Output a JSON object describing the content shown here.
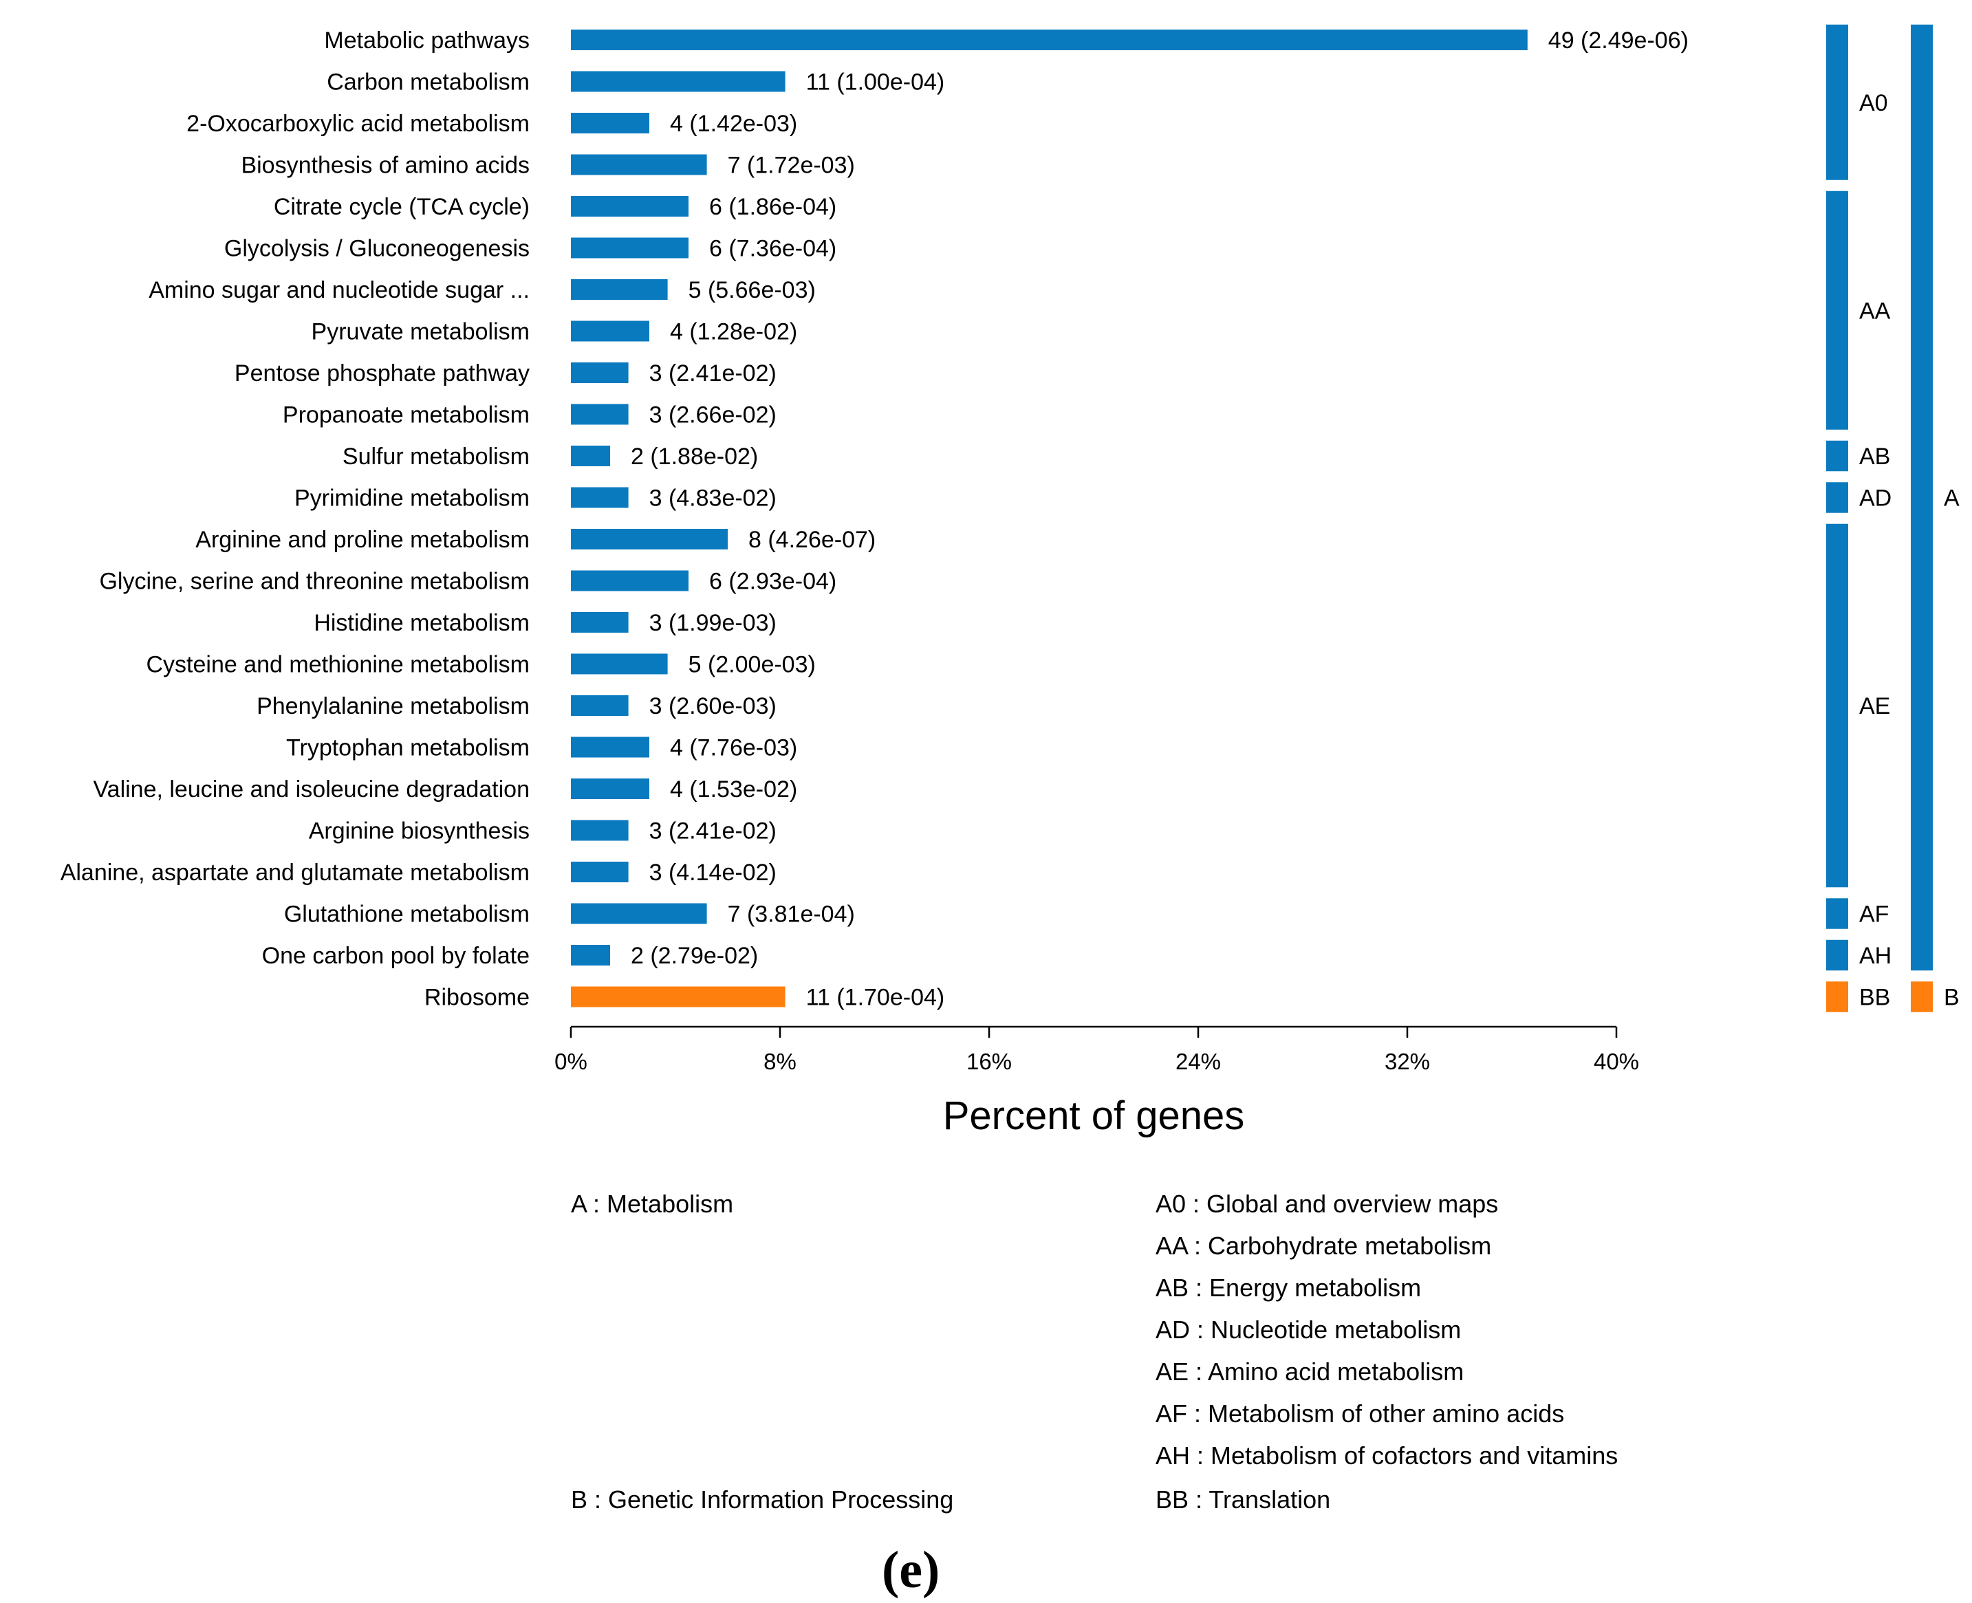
{
  "chart_data": {
    "type": "bar",
    "orientation": "horizontal",
    "xlabel": "Percent of genes",
    "xlim": [
      0,
      40
    ],
    "xticks": [
      "0%",
      "8%",
      "16%",
      "24%",
      "32%",
      "40%"
    ],
    "colors": {
      "A": "#0a7abf",
      "B": "#ff7f0e"
    },
    "bars": [
      {
        "category": "Metabolic pathways",
        "count": 49,
        "pvalue": "2.49e-06",
        "label": "49 (2.49e-06)",
        "percent": 36.6,
        "class": "A"
      },
      {
        "category": "Carbon metabolism",
        "count": 11,
        "pvalue": "1.00e-04",
        "label": "11 (1.00e-04)",
        "percent": 8.2,
        "class": "A"
      },
      {
        "category": "2-Oxocarboxylic acid metabolism",
        "count": 4,
        "pvalue": "1.42e-03",
        "label": "4 (1.42e-03)",
        "percent": 3.0,
        "class": "A"
      },
      {
        "category": "Biosynthesis of amino acids",
        "count": 7,
        "pvalue": "1.72e-03",
        "label": "7 (1.72e-03)",
        "percent": 5.2,
        "class": "A"
      },
      {
        "category": "Citrate cycle (TCA cycle)",
        "count": 6,
        "pvalue": "1.86e-04",
        "label": "6 (1.86e-04)",
        "percent": 4.5,
        "class": "A"
      },
      {
        "category": "Glycolysis / Gluconeogenesis",
        "count": 6,
        "pvalue": "7.36e-04",
        "label": "6 (7.36e-04)",
        "percent": 4.5,
        "class": "A"
      },
      {
        "category": "Amino sugar and nucleotide sugar ...",
        "count": 5,
        "pvalue": "5.66e-03",
        "label": "5 (5.66e-03)",
        "percent": 3.7,
        "class": "A"
      },
      {
        "category": "Pyruvate metabolism",
        "count": 4,
        "pvalue": "1.28e-02",
        "label": "4 (1.28e-02)",
        "percent": 3.0,
        "class": "A"
      },
      {
        "category": "Pentose phosphate pathway",
        "count": 3,
        "pvalue": "2.41e-02",
        "label": "3 (2.41e-02)",
        "percent": 2.2,
        "class": "A"
      },
      {
        "category": "Propanoate metabolism",
        "count": 3,
        "pvalue": "2.66e-02",
        "label": "3 (2.66e-02)",
        "percent": 2.2,
        "class": "A"
      },
      {
        "category": "Sulfur metabolism",
        "count": 2,
        "pvalue": "1.88e-02",
        "label": "2 (1.88e-02)",
        "percent": 1.5,
        "class": "A"
      },
      {
        "category": "Pyrimidine metabolism",
        "count": 3,
        "pvalue": "4.83e-02",
        "label": "3 (4.83e-02)",
        "percent": 2.2,
        "class": "A"
      },
      {
        "category": "Arginine and proline metabolism",
        "count": 8,
        "pvalue": "4.26e-07",
        "label": "8 (4.26e-07)",
        "percent": 6.0,
        "class": "A"
      },
      {
        "category": "Glycine, serine and threonine metabolism",
        "count": 6,
        "pvalue": "2.93e-04",
        "label": "6 (2.93e-04)",
        "percent": 4.5,
        "class": "A"
      },
      {
        "category": "Histidine metabolism",
        "count": 3,
        "pvalue": "1.99e-03",
        "label": "3 (1.99e-03)",
        "percent": 2.2,
        "class": "A"
      },
      {
        "category": "Cysteine and methionine metabolism",
        "count": 5,
        "pvalue": "2.00e-03",
        "label": "5 (2.00e-03)",
        "percent": 3.7,
        "class": "A"
      },
      {
        "category": "Phenylalanine metabolism",
        "count": 3,
        "pvalue": "2.60e-03",
        "label": "3 (2.60e-03)",
        "percent": 2.2,
        "class": "A"
      },
      {
        "category": "Tryptophan metabolism",
        "count": 4,
        "pvalue": "7.76e-03",
        "label": "4 (7.76e-03)",
        "percent": 3.0,
        "class": "A"
      },
      {
        "category": "Valine, leucine and isoleucine degradation",
        "count": 4,
        "pvalue": "1.53e-02",
        "label": "4 (1.53e-02)",
        "percent": 3.0,
        "class": "A"
      },
      {
        "category": "Arginine biosynthesis",
        "count": 3,
        "pvalue": "2.41e-02",
        "label": "3 (2.41e-02)",
        "percent": 2.2,
        "class": "A"
      },
      {
        "category": "Alanine, aspartate and glutamate metabolism",
        "count": 3,
        "pvalue": "4.14e-02",
        "label": "3 (4.14e-02)",
        "percent": 2.2,
        "class": "A"
      },
      {
        "category": "Glutathione metabolism",
        "count": 7,
        "pvalue": "3.81e-04",
        "label": "7 (3.81e-04)",
        "percent": 5.2,
        "class": "A"
      },
      {
        "category": "One carbon pool by folate",
        "count": 2,
        "pvalue": "2.79e-02",
        "label": "2 (2.79e-02)",
        "percent": 1.5,
        "class": "A"
      },
      {
        "category": "Ribosome",
        "count": 11,
        "pvalue": "1.70e-04",
        "label": "11 (1.70e-04)",
        "percent": 8.2,
        "class": "B"
      }
    ],
    "subgroups": [
      {
        "code": "A0",
        "start_index": 0,
        "end_index": 3,
        "class": "A"
      },
      {
        "code": "AA",
        "start_index": 4,
        "end_index": 9,
        "class": "A"
      },
      {
        "code": "AB",
        "start_index": 10,
        "end_index": 10,
        "class": "A"
      },
      {
        "code": "AD",
        "start_index": 11,
        "end_index": 11,
        "class": "A"
      },
      {
        "code": "AE",
        "start_index": 12,
        "end_index": 20,
        "class": "A"
      },
      {
        "code": "AF",
        "start_index": 21,
        "end_index": 21,
        "class": "A"
      },
      {
        "code": "AH",
        "start_index": 22,
        "end_index": 22,
        "class": "A"
      },
      {
        "code": "BB",
        "start_index": 23,
        "end_index": 23,
        "class": "B"
      }
    ],
    "groups": [
      {
        "code": "A",
        "start_index": 0,
        "end_index": 22,
        "class": "A"
      },
      {
        "code": "B",
        "start_index": 23,
        "end_index": 23,
        "class": "B"
      }
    ]
  },
  "legend": {
    "left": [
      "A : Metabolism",
      "B : Genetic Information Processing"
    ],
    "right": [
      "A0 : Global and overview maps",
      "AA : Carbohydrate metabolism",
      "AB : Energy metabolism",
      "AD : Nucleotide metabolism",
      "AE : Amino acid metabolism",
      "AF : Metabolism of other amino acids",
      "AH : Metabolism of cofactors and vitamins",
      "BB : Translation"
    ]
  },
  "panel_label": "(e)"
}
